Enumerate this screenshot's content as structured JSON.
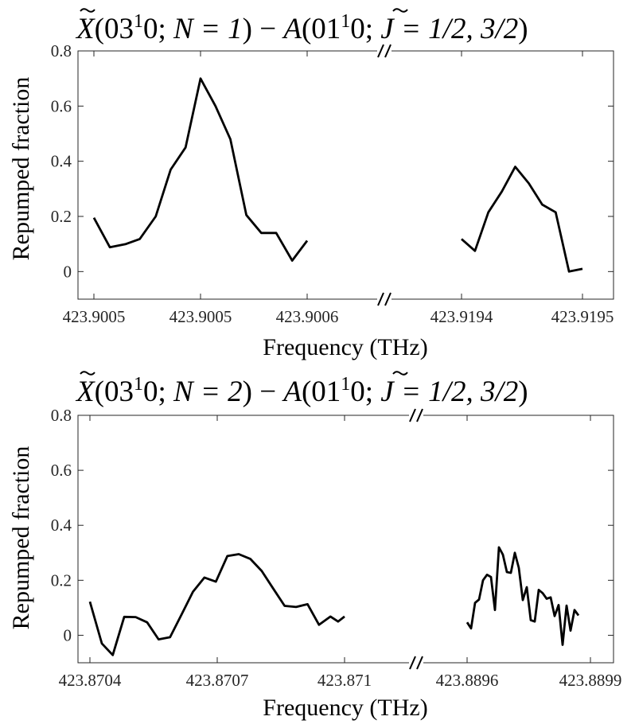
{
  "chart_data": [
    {
      "type": "line",
      "title": {
        "lower_state": "X",
        "vib_lower": "03",
        "vib_lower_sup": "1",
        "vib_lower_end": "0",
        "qn_lower": "N = 1",
        "upper_state": "A",
        "vib_upper": "01",
        "vib_upper_sup": "1",
        "vib_upper_end": "0",
        "qn_upper": "J = 1/2, 3/2"
      },
      "xlabel": "Frequency (THz)",
      "ylabel": "Repumped fraction",
      "ylim": [
        -0.1,
        0.8
      ],
      "yticks": [
        0,
        0.2,
        0.4,
        0.6,
        0.8
      ],
      "grid": false,
      "legend": "none",
      "axis_break": "//",
      "segments": [
        {
          "xticks": [
            {
              "x": 0.0,
              "label": "423.9005"
            },
            {
              "x": 1.0,
              "label": "423.9005"
            },
            {
              "x": 2.0,
              "label": "423.9006"
            }
          ],
          "points": [
            [
              0.0,
              0.195
            ],
            [
              0.15,
              0.088
            ],
            [
              0.3,
              0.1
            ],
            [
              0.43,
              0.118
            ],
            [
              0.58,
              0.2
            ],
            [
              0.72,
              0.37
            ],
            [
              0.86,
              0.45
            ],
            [
              1.0,
              0.7
            ],
            [
              1.14,
              0.6
            ],
            [
              1.28,
              0.48
            ],
            [
              1.43,
              0.205
            ],
            [
              1.57,
              0.14
            ],
            [
              1.71,
              0.14
            ],
            [
              1.86,
              0.04
            ],
            [
              2.0,
              0.112
            ]
          ]
        },
        {
          "xticks": [
            {
              "x": 0.0,
              "label": "423.9194"
            },
            {
              "x": 1.0,
              "label": "423.9195"
            }
          ],
          "points": [
            [
              0.0,
              0.118
            ],
            [
              0.111,
              0.075
            ],
            [
              0.222,
              0.215
            ],
            [
              0.333,
              0.29
            ],
            [
              0.444,
              0.38
            ],
            [
              0.556,
              0.32
            ],
            [
              0.667,
              0.243
            ],
            [
              0.778,
              0.215
            ],
            [
              0.889,
              0.0
            ],
            [
              1.0,
              0.01
            ]
          ]
        }
      ]
    },
    {
      "type": "line",
      "title": {
        "lower_state": "X",
        "vib_lower": "03",
        "vib_lower_sup": "1",
        "vib_lower_end": "0",
        "qn_lower": "N = 2",
        "upper_state": "A",
        "vib_upper": "01",
        "vib_upper_sup": "1",
        "vib_upper_end": "0",
        "qn_upper": "J = 1/2, 3/2"
      },
      "xlabel": "Frequency (THz)",
      "ylabel": "Repumped fraction",
      "ylim": [
        -0.1,
        0.8
      ],
      "yticks": [
        0,
        0.2,
        0.4,
        0.6,
        0.8
      ],
      "grid": false,
      "legend": "none",
      "axis_break": "//",
      "segments": [
        {
          "xticks": [
            {
              "x": 0.0,
              "label": "423.8704"
            },
            {
              "x": 1.0,
              "label": "423.8707"
            },
            {
              "x": 2.0,
              "label": "423.871"
            }
          ],
          "points": [
            [
              0.0,
              0.122
            ],
            [
              0.0935,
              -0.03
            ],
            [
              0.1795,
              -0.072
            ],
            [
              0.2695,
              0.067
            ],
            [
              0.3595,
              0.066
            ],
            [
              0.4495,
              0.047
            ],
            [
              0.5395,
              -0.015
            ],
            [
              0.6295,
              -0.007
            ],
            [
              0.7195,
              0.075
            ],
            [
              0.8095,
              0.158
            ],
            [
              0.8995,
              0.21
            ],
            [
              0.9895,
              0.195
            ],
            [
              1.0795,
              0.288
            ],
            [
              1.1695,
              0.295
            ],
            [
              1.2595,
              0.278
            ],
            [
              1.3495,
              0.234
            ],
            [
              1.4395,
              0.17
            ],
            [
              1.5295,
              0.107
            ],
            [
              1.6195,
              0.103
            ],
            [
              1.7095,
              0.113
            ],
            [
              1.7995,
              0.038
            ],
            [
              1.8895,
              0.068
            ],
            [
              1.9495,
              0.05
            ],
            [
              2.0,
              0.068
            ]
          ]
        },
        {
          "xticks": [
            {
              "x": 0.0,
              "label": "423.8896"
            },
            {
              "x": 1.0,
              "label": "423.8899"
            }
          ],
          "points": [
            [
              0.0,
              0.047
            ],
            [
              0.0323,
              0.025
            ],
            [
              0.0645,
              0.118
            ],
            [
              0.0968,
              0.13
            ],
            [
              0.129,
              0.2
            ],
            [
              0.1613,
              0.22
            ],
            [
              0.1935,
              0.212
            ],
            [
              0.2258,
              0.092
            ],
            [
              0.2581,
              0.32
            ],
            [
              0.2903,
              0.293
            ],
            [
              0.3226,
              0.23
            ],
            [
              0.3548,
              0.227
            ],
            [
              0.3871,
              0.3
            ],
            [
              0.4194,
              0.245
            ],
            [
              0.4516,
              0.128
            ],
            [
              0.4839,
              0.175
            ],
            [
              0.5161,
              0.055
            ],
            [
              0.5484,
              0.05
            ],
            [
              0.5806,
              0.165
            ],
            [
              0.6129,
              0.153
            ],
            [
              0.6452,
              0.133
            ],
            [
              0.6774,
              0.138
            ],
            [
              0.7097,
              0.07
            ],
            [
              0.7419,
              0.11
            ],
            [
              0.7742,
              -0.035
            ],
            [
              0.8065,
              0.108
            ],
            [
              0.8387,
              0.017
            ],
            [
              0.871,
              0.092
            ],
            [
              0.9032,
              0.072
            ]
          ]
        }
      ]
    }
  ]
}
